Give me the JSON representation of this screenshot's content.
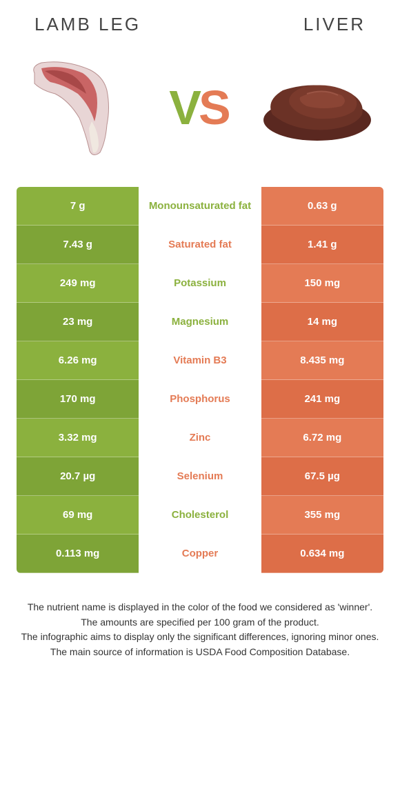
{
  "colors": {
    "left": "#8bb13e",
    "right": "#e47b55",
    "left_dark": "#7ea437",
    "right_dark": "#dd6e48"
  },
  "header": {
    "left_title": "LAMB LEG",
    "right_title": "LIVER",
    "vs_v": "V",
    "vs_s": "S"
  },
  "rows": [
    {
      "label": "Monounsaturated fat",
      "left": "7 g",
      "right": "0.63 g",
      "winner": "left"
    },
    {
      "label": "Saturated fat",
      "left": "7.43 g",
      "right": "1.41 g",
      "winner": "right"
    },
    {
      "label": "Potassium",
      "left": "249 mg",
      "right": "150 mg",
      "winner": "left"
    },
    {
      "label": "Magnesium",
      "left": "23 mg",
      "right": "14 mg",
      "winner": "left"
    },
    {
      "label": "Vitamin B3",
      "left": "6.26 mg",
      "right": "8.435 mg",
      "winner": "right"
    },
    {
      "label": "Phosphorus",
      "left": "170 mg",
      "right": "241 mg",
      "winner": "right"
    },
    {
      "label": "Zinc",
      "left": "3.32 mg",
      "right": "6.72 mg",
      "winner": "right"
    },
    {
      "label": "Selenium",
      "left": "20.7 µg",
      "right": "67.5 µg",
      "winner": "right"
    },
    {
      "label": "Cholesterol",
      "left": "69 mg",
      "right": "355 mg",
      "winner": "left"
    },
    {
      "label": "Copper",
      "left": "0.113 mg",
      "right": "0.634 mg",
      "winner": "right"
    }
  ],
  "footnotes": [
    "The nutrient name is displayed in the color of the food we considered as 'winner'.",
    "The amounts are specified per 100 gram of the product.",
    "The infographic aims to display only the significant differences, ignoring minor ones.",
    "The main source of information is USDA Food Composition Database."
  ]
}
